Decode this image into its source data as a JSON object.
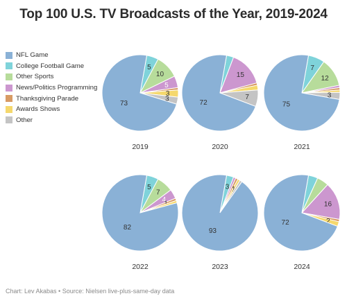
{
  "title": "Top 100 U.S. TV Broadcasts of the Year, 2019-2024",
  "source": "Chart: Lev Akabas • Source: Nielsen live-plus-same-day data",
  "categories": [
    "NFL Game",
    "College Football Game",
    "Other Sports",
    "News/Politics Programming",
    "Thanksgiving Parade",
    "Awards Shows",
    "Other"
  ],
  "colors": [
    "#8ab1d6",
    "#7fd3da",
    "#b7dc9b",
    "#cc97cf",
    "#d89b64",
    "#f5d86d",
    "#c4c4c4"
  ],
  "chart_data": [
    {
      "type": "pie",
      "title": "2019",
      "categories": [
        "NFL Game",
        "College Football Game",
        "Other Sports",
        "News/Politics Programming",
        "Thanksgiving Parade",
        "Awards Shows",
        "Other"
      ],
      "values": [
        73,
        5,
        10,
        5,
        1,
        3,
        3
      ],
      "data_labels": [
        "73",
        "5",
        "10",
        "5",
        "",
        "3",
        "3"
      ]
    },
    {
      "type": "pie",
      "title": "2020",
      "categories": [
        "NFL Game",
        "College Football Game",
        "Other Sports",
        "News/Politics Programming",
        "Thanksgiving Parade",
        "Awards Shows",
        "Other"
      ],
      "values": [
        72,
        3,
        0,
        15,
        1,
        2,
        7
      ],
      "data_labels": [
        "72",
        "",
        "",
        "15",
        "",
        "",
        "7"
      ]
    },
    {
      "type": "pie",
      "title": "2021",
      "categories": [
        "NFL Game",
        "College Football Game",
        "Other Sports",
        "News/Politics Programming",
        "Thanksgiving Parade",
        "Awards Shows",
        "Other"
      ],
      "values": [
        75,
        7,
        12,
        1,
        1,
        1,
        3
      ],
      "data_labels": [
        "75",
        "7",
        "12",
        "",
        "",
        "",
        "3"
      ]
    },
    {
      "type": "pie",
      "title": "2022",
      "categories": [
        "NFL Game",
        "College Football Game",
        "Other Sports",
        "News/Politics Programming",
        "Thanksgiving Parade",
        "Awards Shows",
        "Other"
      ],
      "values": [
        82,
        5,
        7,
        4,
        1,
        1,
        0
      ],
      "data_labels": [
        "82",
        "5",
        "7",
        "4",
        "1",
        "",
        ""
      ]
    },
    {
      "type": "pie",
      "title": "2023",
      "categories": [
        "NFL Game",
        "College Football Game",
        "Other Sports",
        "News/Politics Programming",
        "Thanksgiving Parade",
        "Awards Shows",
        "Other"
      ],
      "values": [
        93,
        3,
        0,
        1,
        1,
        1,
        1
      ],
      "data_labels": [
        "93",
        "3",
        "",
        "",
        "",
        "1",
        ""
      ]
    },
    {
      "type": "pie",
      "title": "2024",
      "categories": [
        "NFL Game",
        "College Football Game",
        "Other Sports",
        "News/Politics Programming",
        "Thanksgiving Parade",
        "Awards Shows",
        "Other"
      ],
      "values": [
        72,
        4,
        5,
        16,
        1,
        2,
        0
      ],
      "data_labels": [
        "72",
        "",
        "",
        "16",
        "",
        "2",
        ""
      ]
    }
  ]
}
